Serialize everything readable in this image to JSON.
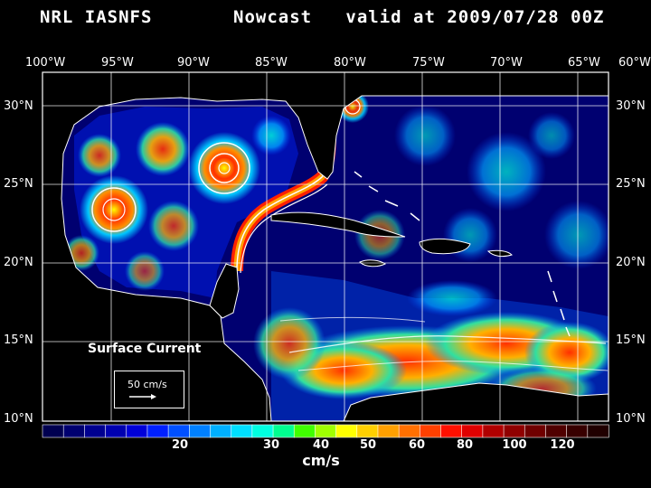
{
  "title": {
    "left": "NRL IASNFS",
    "right": "Nowcast   valid at 2009/07/28 00Z"
  },
  "longitude_labels": [
    "100°W",
    "95°W",
    "90°W",
    "85°W",
    "80°W",
    "75°W",
    "70°W",
    "65°W",
    "60°W"
  ],
  "latitude_labels": [
    "30°N",
    "25°N",
    "20°N",
    "15°N",
    "10°N"
  ],
  "annotation": {
    "surface_current": "Surface Current",
    "reference_vector": "50 cm/s"
  },
  "colorbar": {
    "unit": "cm/s",
    "tick_labels": [
      "20",
      "30",
      "40",
      "50",
      "60",
      "80",
      "100",
      "120"
    ],
    "colors": [
      "#000050",
      "#000070",
      "#000090",
      "#0000b0",
      "#0000d8",
      "#0020ff",
      "#0050ff",
      "#0080ff",
      "#00b0ff",
      "#00dfff",
      "#00ffe0",
      "#00ff90",
      "#40ff00",
      "#a0ff00",
      "#ffff00",
      "#ffd000",
      "#ffa000",
      "#ff7000",
      "#ff4000",
      "#ff1000",
      "#e00000",
      "#b00000",
      "#900000",
      "#700000",
      "#500000",
      "#380000",
      "#200000"
    ]
  }
}
